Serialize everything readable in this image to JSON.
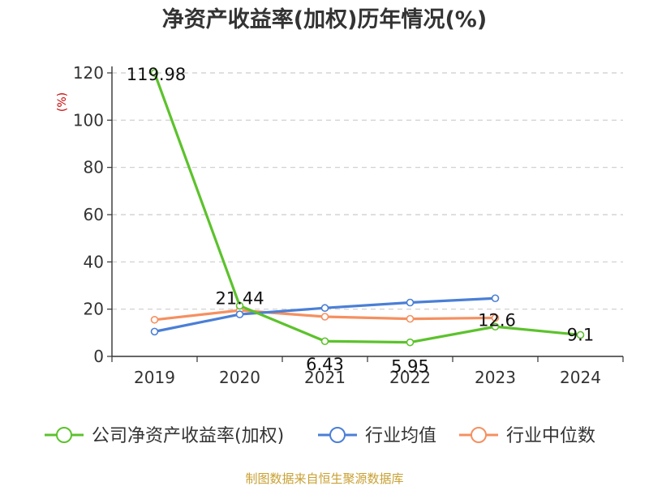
{
  "chart_data": {
    "type": "line",
    "title": "净资产收益率(加权)历年情况(%)",
    "ylabel": "(%)",
    "categories": [
      "2019",
      "2020",
      "2021",
      "2022",
      "2023",
      "2024"
    ],
    "yticks": [
      0,
      20,
      40,
      60,
      80,
      100,
      120
    ],
    "ylim": [
      0,
      120
    ],
    "grid": true,
    "legend_position": "bottom",
    "series": [
      {
        "name": "公司净资产收益率(加权)",
        "color": "#5cc22c",
        "values": [
          119.98,
          21.44,
          6.43,
          5.95,
          12.6,
          9.1
        ],
        "labels": [
          "119.98",
          "21.44",
          "6.43",
          "5.95",
          "12.6",
          "9.1"
        ]
      },
      {
        "name": "行业均值",
        "color": "#4a7fd6",
        "values": [
          10.5,
          17.8,
          20.5,
          22.8,
          24.6,
          null
        ]
      },
      {
        "name": "行业中位数",
        "color": "#f59060",
        "values": [
          15.5,
          19.5,
          16.8,
          15.9,
          16.3,
          null
        ]
      }
    ]
  },
  "source": "制图数据来自恒生聚源数据库"
}
